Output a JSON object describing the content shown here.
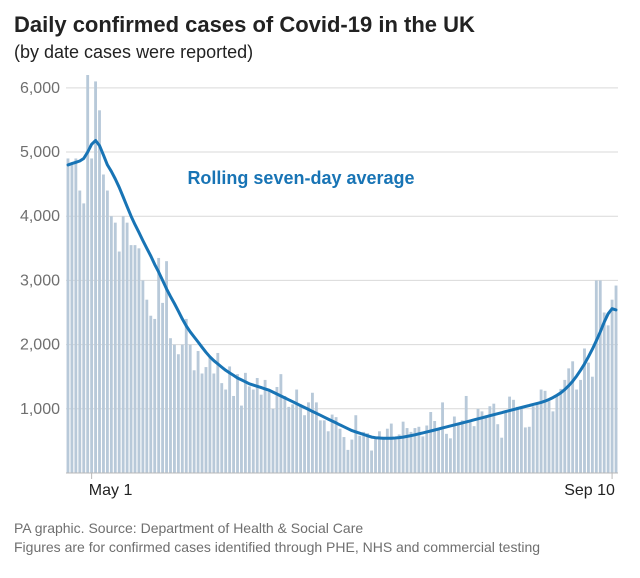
{
  "title": "Daily confirmed cases of Covid-19 in the UK",
  "subtitle": "(by date cases were reported)",
  "title_fontsize": 22,
  "subtitle_fontsize": 18,
  "footer_line1": "PA graphic. Source: Department of Health & Social Care",
  "footer_line2": "Figures are for confirmed cases identified through PHE, NHS and commercial testing",
  "footer_fontsize": 14,
  "footer_color": "#6f6f6f",
  "chart": {
    "type": "bar+line",
    "background_color": "#ffffff",
    "grid_color": "#d9d9d9",
    "axis_color": "#b8b8b8",
    "bar_color": "#b8c9d9",
    "line_color": "#1874b5",
    "line_width": 3,
    "line_label": "Rolling seven-day average",
    "line_label_fontsize": 18,
    "line_label_color": "#1874b5",
    "axis_label_fontsize": 16,
    "axis_label_color": "#6f6f6f",
    "y": {
      "min": 0,
      "max": 6200,
      "ticks": [
        1000,
        2000,
        3000,
        4000,
        5000,
        6000
      ]
    },
    "x_ticks": [
      {
        "index": 6,
        "label": "May 1"
      },
      {
        "index": 138,
        "label": "Sep 10"
      }
    ],
    "bars": [
      4900,
      4800,
      4900,
      4400,
      4200,
      6200,
      4900,
      6100,
      5650,
      4650,
      4400,
      4000,
      3900,
      3450,
      4000,
      3900,
      3550,
      3550,
      3500,
      3000,
      2700,
      2450,
      2400,
      3350,
      2650,
      3300,
      2100,
      2000,
      1850,
      2000,
      2400,
      2000,
      1600,
      1900,
      1550,
      1650,
      1800,
      1550,
      1870,
      1400,
      1300,
      1660,
      1200,
      1540,
      1050,
      1560,
      1350,
      1300,
      1480,
      1220,
      1450,
      1270,
      1000,
      1340,
      1540,
      1200,
      1030,
      1070,
      1300,
      1070,
      900,
      1100,
      1250,
      1100,
      820,
      820,
      650,
      910,
      870,
      690,
      560,
      360,
      520,
      900,
      580,
      640,
      620,
      350,
      540,
      650,
      560,
      690,
      770,
      520,
      600,
      800,
      700,
      640,
      700,
      720,
      570,
      740,
      950,
      810,
      680,
      1100,
      610,
      540,
      880,
      760,
      820,
      1200,
      790,
      730,
      1000,
      960,
      900,
      1040,
      1080,
      760,
      550,
      960,
      1190,
      1140,
      1030,
      1000,
      710,
      720,
      1040,
      1090,
      1300,
      1280,
      1120,
      960,
      1200,
      1310,
      1450,
      1630,
      1740,
      1300,
      1450,
      1940,
      1720,
      1500,
      3000,
      3000,
      2500,
      2300,
      2700,
      2920
    ],
    "line": [
      4800,
      4820,
      4840,
      4860,
      4900,
      5000,
      5120,
      5180,
      5100,
      4950,
      4800,
      4700,
      4580,
      4450,
      4300,
      4150,
      4000,
      3870,
      3750,
      3620,
      3500,
      3380,
      3250,
      3130,
      3000,
      2870,
      2750,
      2640,
      2520,
      2400,
      2290,
      2200,
      2120,
      2040,
      1960,
      1880,
      1810,
      1750,
      1700,
      1650,
      1600,
      1560,
      1520,
      1480,
      1450,
      1420,
      1390,
      1370,
      1350,
      1330,
      1310,
      1290,
      1260,
      1230,
      1200,
      1170,
      1140,
      1110,
      1080,
      1050,
      1020,
      990,
      960,
      930,
      900,
      870,
      840,
      810,
      780,
      750,
      720,
      690,
      660,
      640,
      620,
      600,
      580,
      560,
      550,
      545,
      540,
      540,
      540,
      545,
      552,
      560,
      570,
      582,
      595,
      610,
      625,
      640,
      655,
      670,
      686,
      702,
      718,
      734,
      750,
      765,
      780,
      796,
      812,
      828,
      844,
      860,
      876,
      892,
      908,
      924,
      940,
      956,
      972,
      988,
      1004,
      1020,
      1036,
      1052,
      1068,
      1084,
      1100,
      1120,
      1145,
      1175,
      1210,
      1250,
      1300,
      1360,
      1430,
      1510,
      1600,
      1700,
      1810,
      1930,
      2060,
      2200,
      2350,
      2480,
      2560,
      2540
    ]
  }
}
